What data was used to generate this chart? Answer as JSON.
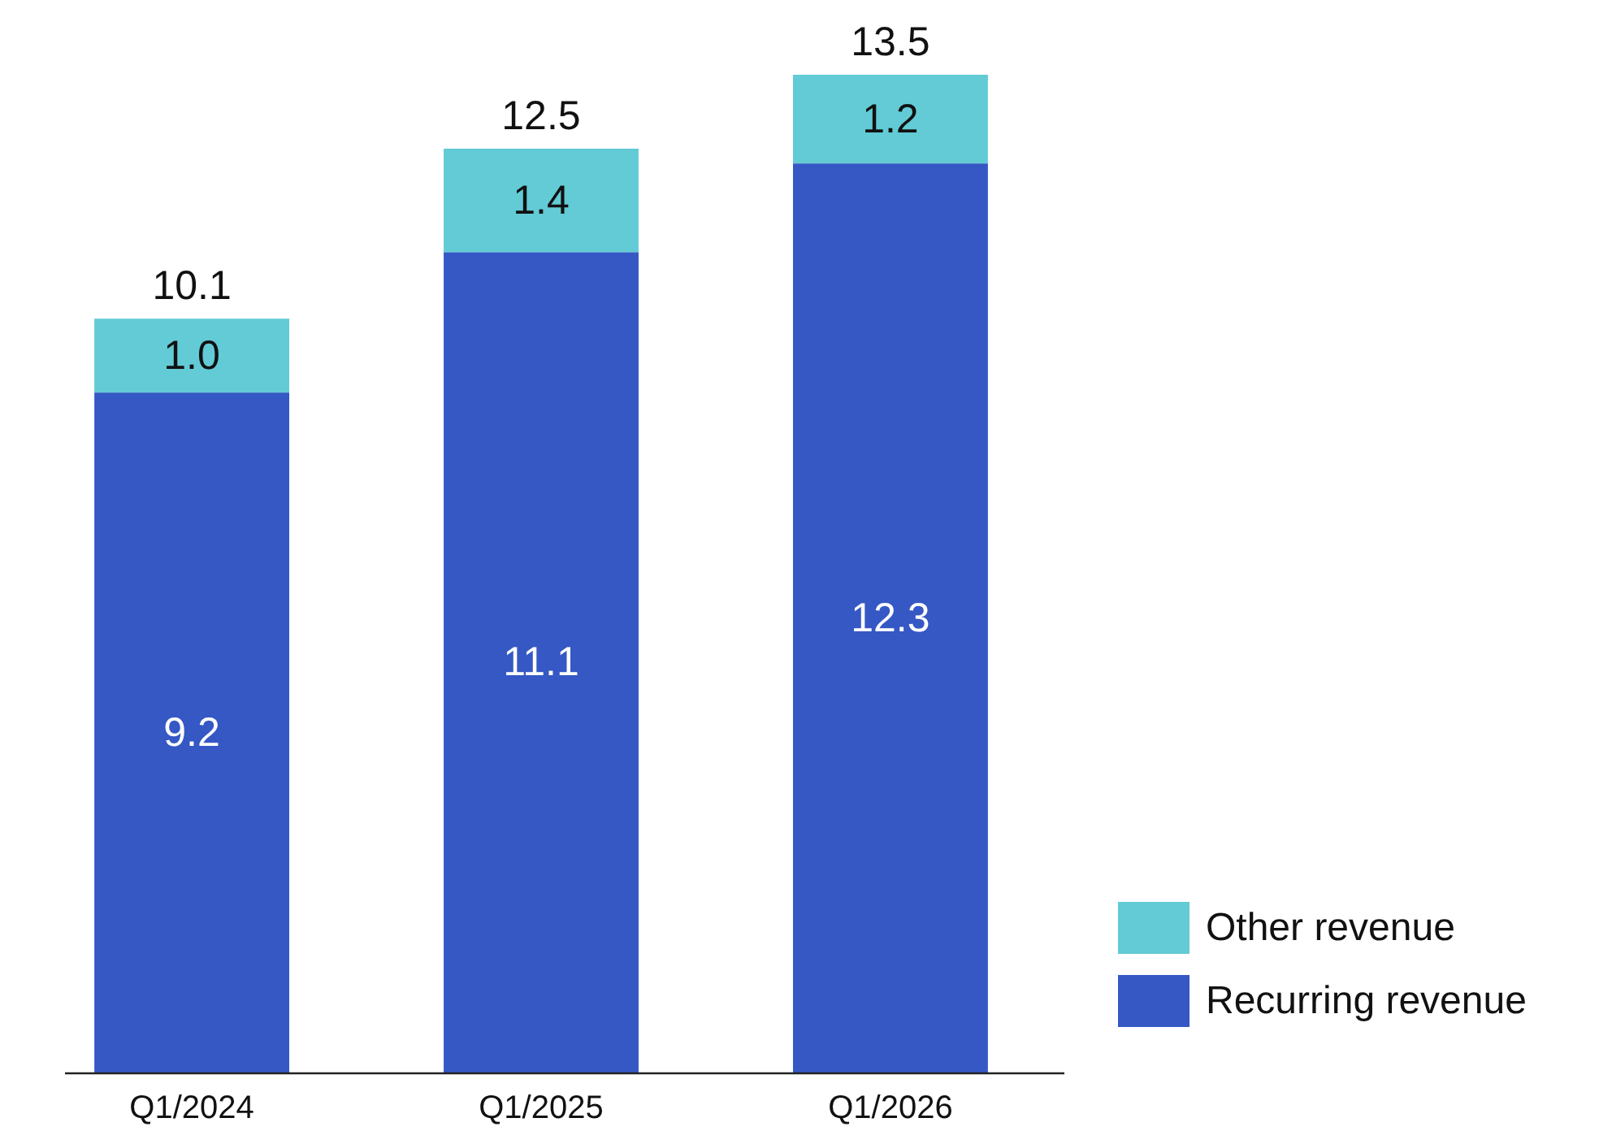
{
  "chart_data": {
    "type": "bar",
    "stacked": true,
    "categories": [
      "Q1/2024",
      "Q1/2025",
      "Q1/2026"
    ],
    "series": [
      {
        "name": "Recurring revenue",
        "color": "#3558c5",
        "values": [
          9.2,
          11.1,
          12.3
        ],
        "value_labels": [
          "9.2",
          "11.1",
          "12.3"
        ]
      },
      {
        "name": "Other revenue",
        "color": "#62cbd5",
        "values": [
          1.0,
          1.4,
          1.2
        ],
        "value_labels": [
          "1.0",
          "1.4",
          "1.2"
        ]
      }
    ],
    "totals": [
      "10.1",
      "12.5",
      "13.5"
    ],
    "legend": "bottom right"
  }
}
